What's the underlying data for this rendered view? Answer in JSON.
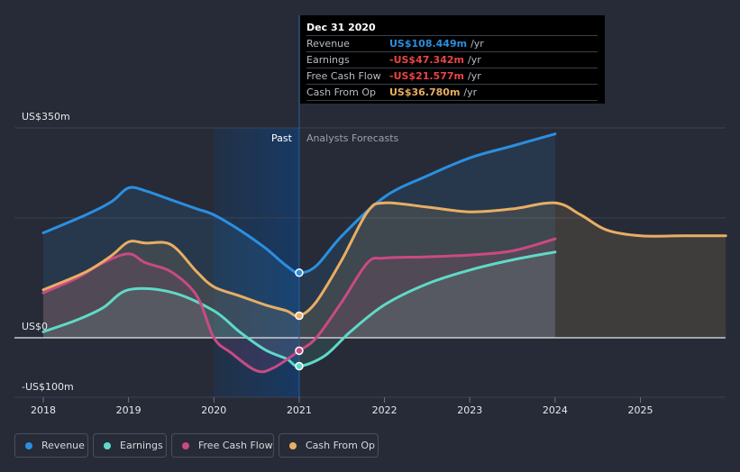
{
  "chart_data": {
    "type": "area",
    "past_label": "Past",
    "forecast_label": "Analysts Forecasts",
    "y_axis_labels": [
      "US$350m",
      "US$0",
      "-US$100m"
    ],
    "x_ticks": [
      "2018",
      "2019",
      "2020",
      "2021",
      "2022",
      "2023",
      "2024",
      "2025"
    ],
    "ylim": [
      -100,
      350
    ],
    "highlight_x": 2021.0,
    "series": [
      {
        "name": "Revenue",
        "color": "#2b8fe0",
        "points": [
          [
            2018.0,
            175
          ],
          [
            2018.5,
            205
          ],
          [
            2018.8,
            227
          ],
          [
            2019.0,
            250
          ],
          [
            2019.2,
            245
          ],
          [
            2019.5,
            230
          ],
          [
            2019.8,
            215
          ],
          [
            2020.0,
            205
          ],
          [
            2020.3,
            180
          ],
          [
            2020.6,
            150
          ],
          [
            2020.85,
            120
          ],
          [
            2021.0,
            108.449
          ],
          [
            2021.2,
            120
          ],
          [
            2021.5,
            170
          ],
          [
            2022.0,
            235
          ],
          [
            2022.5,
            270
          ],
          [
            2023.0,
            300
          ],
          [
            2023.5,
            320
          ],
          [
            2024.0,
            340
          ]
        ]
      },
      {
        "name": "Earnings",
        "color": "#5fd9c8",
        "points": [
          [
            2018.0,
            10
          ],
          [
            2018.4,
            30
          ],
          [
            2018.7,
            50
          ],
          [
            2019.0,
            80
          ],
          [
            2019.5,
            76
          ],
          [
            2020.0,
            45
          ],
          [
            2020.3,
            10
          ],
          [
            2020.6,
            -20
          ],
          [
            2020.85,
            -35
          ],
          [
            2021.0,
            -47.342
          ],
          [
            2021.3,
            -30
          ],
          [
            2021.6,
            10
          ],
          [
            2022.0,
            55
          ],
          [
            2022.5,
            90
          ],
          [
            2023.0,
            113
          ],
          [
            2023.5,
            130
          ],
          [
            2024.0,
            143
          ]
        ]
      },
      {
        "name": "Free Cash Flow",
        "color": "#c94a84",
        "points": [
          [
            2018.0,
            75
          ],
          [
            2018.4,
            100
          ],
          [
            2018.7,
            125
          ],
          [
            2019.0,
            140
          ],
          [
            2019.2,
            125
          ],
          [
            2019.5,
            110
          ],
          [
            2019.8,
            70
          ],
          [
            2020.0,
            0
          ],
          [
            2020.2,
            -25
          ],
          [
            2020.5,
            -55
          ],
          [
            2020.7,
            -50
          ],
          [
            2021.0,
            -21.577
          ],
          [
            2021.2,
            0
          ],
          [
            2021.5,
            60
          ],
          [
            2021.8,
            125
          ],
          [
            2022.0,
            133
          ],
          [
            2022.5,
            135
          ],
          [
            2023.0,
            138
          ],
          [
            2023.5,
            145
          ],
          [
            2024.0,
            165
          ]
        ]
      },
      {
        "name": "Cash From Op",
        "color": "#e8ae63",
        "points": [
          [
            2018.0,
            80
          ],
          [
            2018.5,
            110
          ],
          [
            2018.8,
            137
          ],
          [
            2019.0,
            160
          ],
          [
            2019.2,
            158
          ],
          [
            2019.5,
            155
          ],
          [
            2019.8,
            110
          ],
          [
            2020.0,
            85
          ],
          [
            2020.3,
            70
          ],
          [
            2020.6,
            55
          ],
          [
            2020.85,
            45
          ],
          [
            2021.0,
            36.78
          ],
          [
            2021.2,
            60
          ],
          [
            2021.5,
            130
          ],
          [
            2021.8,
            210
          ],
          [
            2022.0,
            225
          ],
          [
            2022.5,
            218
          ],
          [
            2023.0,
            210
          ],
          [
            2023.5,
            215
          ],
          [
            2024.0,
            225
          ],
          [
            2024.3,
            205
          ],
          [
            2024.6,
            180
          ],
          [
            2025.0,
            170
          ],
          [
            2025.5,
            170
          ],
          [
            2026.0,
            170
          ]
        ]
      }
    ]
  },
  "tooltip": {
    "date": "Dec 31 2020",
    "rows": [
      {
        "label": "Revenue",
        "value": "US$108.449m",
        "unit": "/yr",
        "color": "#2b8fe0"
      },
      {
        "label": "Earnings",
        "value": "-US$47.342m",
        "unit": "/yr",
        "color": "#e84545"
      },
      {
        "label": "Free Cash Flow",
        "value": "-US$21.577m",
        "unit": "/yr",
        "color": "#e84545"
      },
      {
        "label": "Cash From Op",
        "value": "US$36.780m",
        "unit": "/yr",
        "color": "#e8ae63"
      }
    ]
  },
  "legend": [
    {
      "label": "Revenue",
      "color": "#2b8fe0"
    },
    {
      "label": "Earnings",
      "color": "#5fd9c8"
    },
    {
      "label": "Free Cash Flow",
      "color": "#c94a84"
    },
    {
      "label": "Cash From Op",
      "color": "#e8ae63"
    }
  ]
}
